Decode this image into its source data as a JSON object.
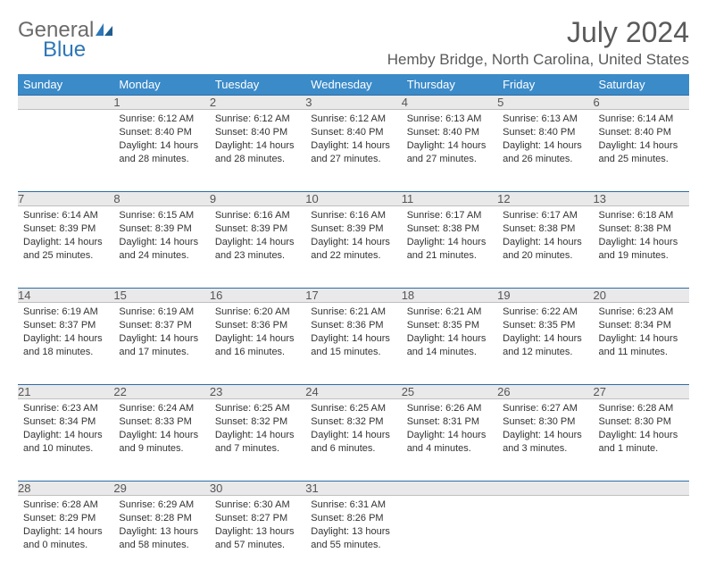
{
  "brand": {
    "part1": "General",
    "part2": "Blue"
  },
  "title": "July 2024",
  "location": "Hemby Bridge, North Carolina, United States",
  "colors": {
    "header_bg": "#3b8bc9",
    "header_text": "#ffffff",
    "daynum_bg": "#e9e9e9",
    "rule": "#2e6da4",
    "text": "#333333",
    "brand_gray": "#6b6b6b",
    "brand_blue": "#2e77b8"
  },
  "weekdays": [
    "Sunday",
    "Monday",
    "Tuesday",
    "Wednesday",
    "Thursday",
    "Friday",
    "Saturday"
  ],
  "weeks": [
    [
      {
        "n": "",
        "sunrise": "",
        "sunset": "",
        "daylight": ""
      },
      {
        "n": "1",
        "sunrise": "Sunrise: 6:12 AM",
        "sunset": "Sunset: 8:40 PM",
        "daylight": "Daylight: 14 hours and 28 minutes."
      },
      {
        "n": "2",
        "sunrise": "Sunrise: 6:12 AM",
        "sunset": "Sunset: 8:40 PM",
        "daylight": "Daylight: 14 hours and 28 minutes."
      },
      {
        "n": "3",
        "sunrise": "Sunrise: 6:12 AM",
        "sunset": "Sunset: 8:40 PM",
        "daylight": "Daylight: 14 hours and 27 minutes."
      },
      {
        "n": "4",
        "sunrise": "Sunrise: 6:13 AM",
        "sunset": "Sunset: 8:40 PM",
        "daylight": "Daylight: 14 hours and 27 minutes."
      },
      {
        "n": "5",
        "sunrise": "Sunrise: 6:13 AM",
        "sunset": "Sunset: 8:40 PM",
        "daylight": "Daylight: 14 hours and 26 minutes."
      },
      {
        "n": "6",
        "sunrise": "Sunrise: 6:14 AM",
        "sunset": "Sunset: 8:40 PM",
        "daylight": "Daylight: 14 hours and 25 minutes."
      }
    ],
    [
      {
        "n": "7",
        "sunrise": "Sunrise: 6:14 AM",
        "sunset": "Sunset: 8:39 PM",
        "daylight": "Daylight: 14 hours and 25 minutes."
      },
      {
        "n": "8",
        "sunrise": "Sunrise: 6:15 AM",
        "sunset": "Sunset: 8:39 PM",
        "daylight": "Daylight: 14 hours and 24 minutes."
      },
      {
        "n": "9",
        "sunrise": "Sunrise: 6:16 AM",
        "sunset": "Sunset: 8:39 PM",
        "daylight": "Daylight: 14 hours and 23 minutes."
      },
      {
        "n": "10",
        "sunrise": "Sunrise: 6:16 AM",
        "sunset": "Sunset: 8:39 PM",
        "daylight": "Daylight: 14 hours and 22 minutes."
      },
      {
        "n": "11",
        "sunrise": "Sunrise: 6:17 AM",
        "sunset": "Sunset: 8:38 PM",
        "daylight": "Daylight: 14 hours and 21 minutes."
      },
      {
        "n": "12",
        "sunrise": "Sunrise: 6:17 AM",
        "sunset": "Sunset: 8:38 PM",
        "daylight": "Daylight: 14 hours and 20 minutes."
      },
      {
        "n": "13",
        "sunrise": "Sunrise: 6:18 AM",
        "sunset": "Sunset: 8:38 PM",
        "daylight": "Daylight: 14 hours and 19 minutes."
      }
    ],
    [
      {
        "n": "14",
        "sunrise": "Sunrise: 6:19 AM",
        "sunset": "Sunset: 8:37 PM",
        "daylight": "Daylight: 14 hours and 18 minutes."
      },
      {
        "n": "15",
        "sunrise": "Sunrise: 6:19 AM",
        "sunset": "Sunset: 8:37 PM",
        "daylight": "Daylight: 14 hours and 17 minutes."
      },
      {
        "n": "16",
        "sunrise": "Sunrise: 6:20 AM",
        "sunset": "Sunset: 8:36 PM",
        "daylight": "Daylight: 14 hours and 16 minutes."
      },
      {
        "n": "17",
        "sunrise": "Sunrise: 6:21 AM",
        "sunset": "Sunset: 8:36 PM",
        "daylight": "Daylight: 14 hours and 15 minutes."
      },
      {
        "n": "18",
        "sunrise": "Sunrise: 6:21 AM",
        "sunset": "Sunset: 8:35 PM",
        "daylight": "Daylight: 14 hours and 14 minutes."
      },
      {
        "n": "19",
        "sunrise": "Sunrise: 6:22 AM",
        "sunset": "Sunset: 8:35 PM",
        "daylight": "Daylight: 14 hours and 12 minutes."
      },
      {
        "n": "20",
        "sunrise": "Sunrise: 6:23 AM",
        "sunset": "Sunset: 8:34 PM",
        "daylight": "Daylight: 14 hours and 11 minutes."
      }
    ],
    [
      {
        "n": "21",
        "sunrise": "Sunrise: 6:23 AM",
        "sunset": "Sunset: 8:34 PM",
        "daylight": "Daylight: 14 hours and 10 minutes."
      },
      {
        "n": "22",
        "sunrise": "Sunrise: 6:24 AM",
        "sunset": "Sunset: 8:33 PM",
        "daylight": "Daylight: 14 hours and 9 minutes."
      },
      {
        "n": "23",
        "sunrise": "Sunrise: 6:25 AM",
        "sunset": "Sunset: 8:32 PM",
        "daylight": "Daylight: 14 hours and 7 minutes."
      },
      {
        "n": "24",
        "sunrise": "Sunrise: 6:25 AM",
        "sunset": "Sunset: 8:32 PM",
        "daylight": "Daylight: 14 hours and 6 minutes."
      },
      {
        "n": "25",
        "sunrise": "Sunrise: 6:26 AM",
        "sunset": "Sunset: 8:31 PM",
        "daylight": "Daylight: 14 hours and 4 minutes."
      },
      {
        "n": "26",
        "sunrise": "Sunrise: 6:27 AM",
        "sunset": "Sunset: 8:30 PM",
        "daylight": "Daylight: 14 hours and 3 minutes."
      },
      {
        "n": "27",
        "sunrise": "Sunrise: 6:28 AM",
        "sunset": "Sunset: 8:30 PM",
        "daylight": "Daylight: 14 hours and 1 minute."
      }
    ],
    [
      {
        "n": "28",
        "sunrise": "Sunrise: 6:28 AM",
        "sunset": "Sunset: 8:29 PM",
        "daylight": "Daylight: 14 hours and 0 minutes."
      },
      {
        "n": "29",
        "sunrise": "Sunrise: 6:29 AM",
        "sunset": "Sunset: 8:28 PM",
        "daylight": "Daylight: 13 hours and 58 minutes."
      },
      {
        "n": "30",
        "sunrise": "Sunrise: 6:30 AM",
        "sunset": "Sunset: 8:27 PM",
        "daylight": "Daylight: 13 hours and 57 minutes."
      },
      {
        "n": "31",
        "sunrise": "Sunrise: 6:31 AM",
        "sunset": "Sunset: 8:26 PM",
        "daylight": "Daylight: 13 hours and 55 minutes."
      },
      {
        "n": "",
        "sunrise": "",
        "sunset": "",
        "daylight": ""
      },
      {
        "n": "",
        "sunrise": "",
        "sunset": "",
        "daylight": ""
      },
      {
        "n": "",
        "sunrise": "",
        "sunset": "",
        "daylight": ""
      }
    ]
  ]
}
